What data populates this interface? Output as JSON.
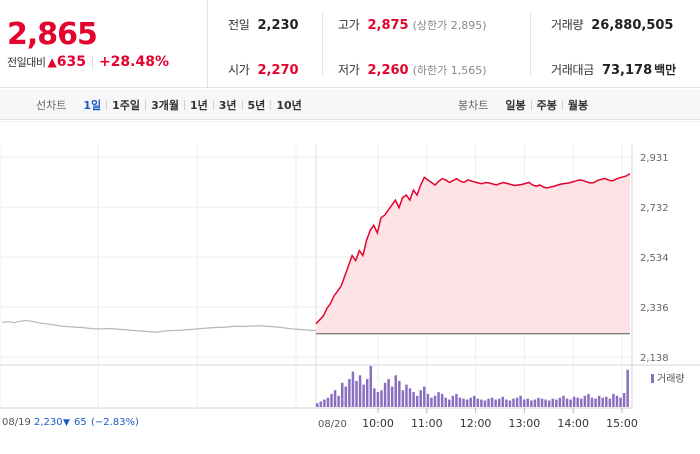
{
  "summary": {
    "current_price": "2,865",
    "change_label": "전일대비",
    "change_icon": "up-triangle-icon",
    "change_value": "635",
    "change_percent": "+28.48%",
    "prev_close": {
      "label": "전일",
      "value": "2,230"
    },
    "open": {
      "label": "시가",
      "value": "2,270"
    },
    "high": {
      "label": "고가",
      "value": "2,875",
      "limit_text": "(상한가 2,895)"
    },
    "low": {
      "label": "저가",
      "value": "2,260",
      "limit_text": "(하한가 1,565)"
    },
    "volume": {
      "label": "거래량",
      "value": "26,880,505"
    },
    "trade_amount": {
      "label": "거래대금",
      "value": "73,178",
      "unit": "백만"
    },
    "colors": {
      "up": "#e4032e",
      "down": "#1a5cc2"
    }
  },
  "tabs": {
    "line_title": "선차트",
    "line_tabs": [
      "1일",
      "1주일",
      "3개월",
      "1년",
      "3년",
      "5년",
      "10년"
    ],
    "line_active": "1일",
    "candle_title": "봉차트",
    "candle_tabs": [
      "일봉",
      "주봉",
      "월봉"
    ]
  },
  "chart_data": {
    "type": "line",
    "y_ticks": [
      "2,931",
      "2,732",
      "2,534",
      "2,336",
      "2,138"
    ],
    "ylim": [
      2138,
      2931
    ],
    "prev_day": {
      "date": "08/19",
      "close": "2,230",
      "change": "65",
      "change_percent": "(−2.83%)",
      "change_icon": "down-triangle-icon",
      "values": [
        2275,
        2278,
        2274,
        2280,
        2283,
        2279,
        2273,
        2270,
        2267,
        2263,
        2260,
        2258,
        2256,
        2255,
        2252,
        2250,
        2249,
        2251,
        2250,
        2248,
        2246,
        2244,
        2242,
        2240,
        2238,
        2236,
        2240,
        2242,
        2243,
        2244,
        2246,
        2248,
        2250,
        2252,
        2254,
        2255,
        2256,
        2258,
        2260,
        2259,
        2260,
        2261,
        2262,
        2260,
        2258,
        2256,
        2253,
        2250,
        2248,
        2246,
        2244,
        2243
      ]
    },
    "today": {
      "date": "08/20",
      "x_ticks": [
        "10:00",
        "11:00",
        "12:00",
        "13:00",
        "14:00",
        "15:00"
      ],
      "values": [
        2270,
        2285,
        2300,
        2330,
        2350,
        2380,
        2400,
        2420,
        2460,
        2500,
        2540,
        2520,
        2560,
        2540,
        2600,
        2640,
        2660,
        2630,
        2690,
        2700,
        2720,
        2740,
        2760,
        2730,
        2770,
        2780,
        2760,
        2800,
        2780,
        2820,
        2850,
        2840,
        2830,
        2820,
        2835,
        2845,
        2840,
        2830,
        2838,
        2845,
        2835,
        2830,
        2840,
        2836,
        2832,
        2828,
        2825,
        2830,
        2828,
        2824,
        2820,
        2826,
        2830,
        2826,
        2822,
        2818,
        2820,
        2822,
        2826,
        2830,
        2820,
        2815,
        2820,
        2812,
        2808,
        2812,
        2815,
        2820,
        2824,
        2826,
        2828,
        2832,
        2836,
        2840,
        2838,
        2832,
        2828,
        2830,
        2838,
        2842,
        2846,
        2840,
        2836,
        2842,
        2848,
        2852,
        2856,
        2865
      ],
      "volumes": [
        4,
        6,
        8,
        10,
        14,
        18,
        12,
        26,
        22,
        30,
        38,
        28,
        34,
        24,
        30,
        44,
        20,
        16,
        18,
        26,
        30,
        22,
        34,
        28,
        18,
        24,
        20,
        16,
        12,
        18,
        22,
        14,
        10,
        12,
        16,
        14,
        10,
        8,
        12,
        14,
        10,
        9,
        8,
        10,
        12,
        9,
        8,
        7,
        9,
        10,
        8,
        9,
        11,
        8,
        7,
        9,
        10,
        12,
        8,
        9,
        7,
        8,
        10,
        9,
        8,
        7,
        9,
        8,
        10,
        12,
        9,
        8,
        11,
        10,
        9,
        12,
        14,
        10,
        9,
        12,
        10,
        11,
        9,
        14,
        12,
        10,
        15,
        40
      ]
    },
    "volume_legend": "거래량"
  }
}
